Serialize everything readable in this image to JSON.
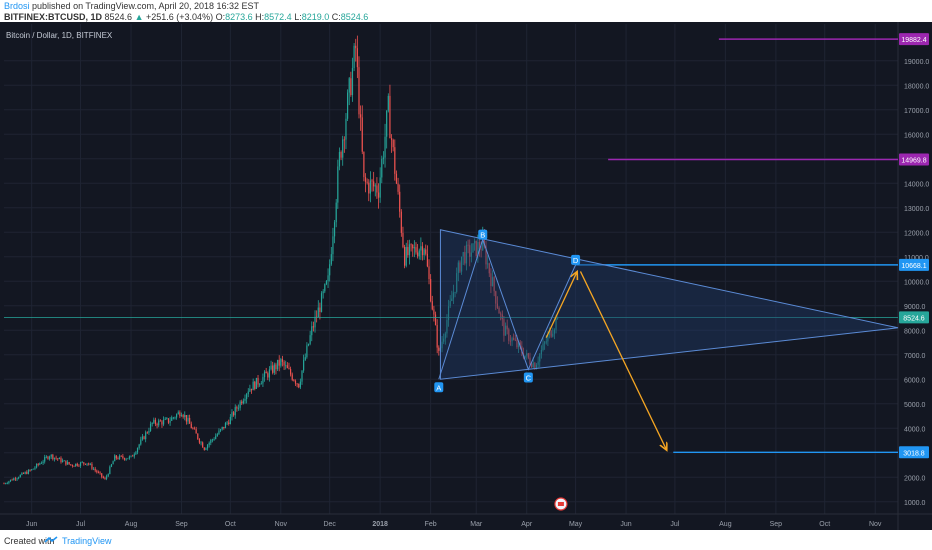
{
  "header": {
    "author": "Brdosi",
    "published": "published on TradingView.com, April 20, 2018 16:32 EST",
    "symbol": "BITFINEX:BTCUSD, 1D",
    "last": "8524.6",
    "change": "+251.6 (+3.04%)",
    "o_label": "O:",
    "o": "8273.6",
    "h_label": "H:",
    "h": "8572.4",
    "l_label": "L:",
    "l": "8219.0",
    "c_label": "C:",
    "c": "8524.6"
  },
  "footer": {
    "created": "Created with",
    "brand": "TradingView"
  },
  "colors": {
    "bg": "#131722",
    "up": "#26a69a",
    "down": "#ef5350",
    "purple": "#9c27b0",
    "blue": "#2196f3",
    "orange": "#f5a623",
    "triangle_fill": "#1e3a66",
    "triangle_line": "#5b8bd6",
    "grid": "#1f2433",
    "axis_text": "#9aa0ab",
    "price_line": "#26a69a"
  },
  "chart_data": {
    "type": "candlestick",
    "title": "Bitcoin / Dollar, 1D, BITFINEX",
    "y_ticks": [
      "1000.0",
      "2000.0",
      "3000.0",
      "4000.0",
      "5000.0",
      "6000.0",
      "7000.0",
      "8000.0",
      "9000.0",
      "10000.0",
      "11000.0",
      "12000.0",
      "13000.0",
      "14000.0",
      "15000.0",
      "16000.0",
      "17000.0",
      "18000.0",
      "19000.0"
    ],
    "x_ticks": [
      "Jun",
      "Jul",
      "Aug",
      "Sep",
      "Oct",
      "Nov",
      "Dec",
      "2018",
      "Feb",
      "Mar",
      "Apr",
      "May",
      "Jun",
      "Jul",
      "Aug",
      "Sep",
      "Oct",
      "Nov"
    ],
    "ylim": [
      500,
      20500
    ],
    "x_axis": {
      "start": "2017-05-15",
      "end": "2018-11-15"
    },
    "price_path": [
      [
        "2017-05-15",
        1750
      ],
      [
        "2017-06-01",
        2300
      ],
      [
        "2017-06-12",
        2900
      ],
      [
        "2017-06-25",
        2500
      ],
      [
        "2017-07-05",
        2600
      ],
      [
        "2017-07-16",
        1900
      ],
      [
        "2017-07-22",
        2800
      ],
      [
        "2017-08-01",
        2800
      ],
      [
        "2017-08-14",
        4200
      ],
      [
        "2017-08-24",
        4300
      ],
      [
        "2017-09-01",
        4700
      ],
      [
        "2017-09-15",
        3200
      ],
      [
        "2017-09-25",
        3900
      ],
      [
        "2017-10-01",
        4400
      ],
      [
        "2017-10-12",
        5600
      ],
      [
        "2017-10-20",
        6000
      ],
      [
        "2017-11-01",
        6700
      ],
      [
        "2017-11-12",
        5800
      ],
      [
        "2017-11-20",
        8000
      ],
      [
        "2017-11-30",
        10000
      ],
      [
        "2017-12-07",
        15000
      ],
      [
        "2017-12-17",
        19500
      ],
      [
        "2017-12-22",
        14000
      ],
      [
        "2017-12-31",
        13800
      ],
      [
        "2018-01-06",
        17000
      ],
      [
        "2018-01-16",
        11000
      ],
      [
        "2018-01-28",
        11500
      ],
      [
        "2018-02-06",
        7000
      ],
      [
        "2018-02-20",
        11000
      ],
      [
        "2018-03-05",
        11500
      ],
      [
        "2018-03-18",
        8000
      ],
      [
        "2018-04-01",
        6900
      ],
      [
        "2018-04-06",
        6600
      ],
      [
        "2018-04-20",
        8524.6
      ]
    ],
    "levels": [
      {
        "label": "19882.4",
        "value": 19882.4,
        "color": "purple",
        "from": "2018-07-28"
      },
      {
        "label": "14969.8",
        "value": 14969.8,
        "color": "purple",
        "from": "2018-05-21"
      },
      {
        "label": "10668.1",
        "value": 10668.1,
        "color": "blue",
        "from": "2018-05-01"
      },
      {
        "label": "8524.6",
        "value": 8524.6,
        "color": "green",
        "from": "2017-05-15"
      },
      {
        "label": "3018.8",
        "value": 3018.8,
        "color": "blue",
        "from": "2018-06-30"
      }
    ],
    "triangle": {
      "top": [
        "2018-02-07",
        12100
      ],
      "apex": [
        "2018-11-15",
        8100
      ],
      "bottom": [
        "2018-02-07",
        6000
      ]
    },
    "pattern_points": [
      {
        "label": "A",
        "date": "2018-02-06",
        "price": 6000
      },
      {
        "label": "B",
        "date": "2018-03-05",
        "price": 11700
      },
      {
        "label": "C",
        "date": "2018-04-02",
        "price": 6400
      },
      {
        "label": "D",
        "date": "2018-05-01",
        "price": 10668.1
      }
    ],
    "projection": [
      {
        "from": [
          "2018-04-13",
          7700
        ],
        "to": [
          "2018-05-02",
          10400
        ]
      },
      {
        "from": [
          "2018-05-04",
          10400
        ],
        "to": [
          "2018-06-26",
          3100
        ]
      }
    ]
  }
}
